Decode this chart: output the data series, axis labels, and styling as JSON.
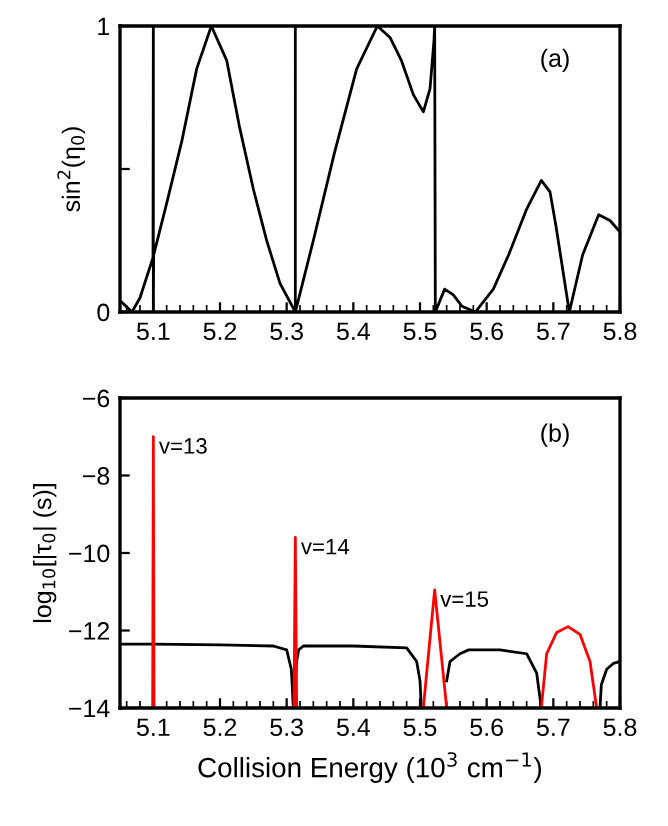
{
  "chart_data": [
    {
      "type": "line",
      "ylabel": "sin$^{2}$(η$_{0}$)",
      "annotations": [
        "(a)"
      ],
      "xlim": [
        5.05,
        5.8
      ],
      "ylim": [
        0,
        1
      ],
      "xticks": [
        5.1,
        5.2,
        5.3,
        5.4,
        5.5,
        5.6,
        5.7,
        5.8
      ],
      "yticks": [
        0,
        {
          "value": 0.5,
          "label": null
        },
        1
      ],
      "grid": false,
      "legend": false,
      "marker": "none",
      "line_style": "solid",
      "series": [
        {
          "color": "#000000",
          "x": [
            5.05,
            5.068,
            5.08,
            5.0995,
            5.1,
            5.1,
            5.1005,
            5.12,
            5.143,
            5.165,
            5.187,
            5.21,
            5.229,
            5.25,
            5.27,
            5.29,
            5.313,
            5.313,
            5.313,
            5.34,
            5.371,
            5.405,
            5.436,
            5.455,
            5.472,
            5.49,
            5.505,
            5.515,
            5.521,
            5.522,
            5.523,
            5.537,
            5.55,
            5.563,
            5.583,
            5.61,
            5.633,
            5.66,
            5.682,
            5.695,
            5.704,
            5.724,
            5.744,
            5.768,
            5.785,
            5.8
          ],
          "values": [
            0.04,
            0,
            0.05,
            0.19,
            1,
            0,
            0.2,
            0.38,
            0.6,
            0.85,
            1,
            0.88,
            0.65,
            0.43,
            0.25,
            0.1,
            0,
            1,
            0,
            0.25,
            0.55,
            0.85,
            1,
            0.96,
            0.88,
            0.76,
            0.7,
            0.78,
            0.95,
            1,
            0,
            0.08,
            0.06,
            0.02,
            0,
            0.08,
            0.2,
            0.36,
            0.46,
            0.42,
            0.3,
            0,
            0.2,
            0.34,
            0.32,
            0.28
          ]
        }
      ]
    },
    {
      "type": "line",
      "xlabel": "Collision Energy (10$^{3}$ cm$^{−1}$)",
      "ylabel": "log$_{10}$[|τ$_{0}$| (s)]",
      "annotations": [
        "(b)",
        {
          "text": "v=13",
          "x": 5.1,
          "y": -7
        },
        {
          "text": "v=14",
          "x": 5.313,
          "y": -9.6
        },
        {
          "text": "v=15",
          "x": 5.522,
          "y": -10.95
        }
      ],
      "xlim": [
        5.05,
        5.8
      ],
      "ylim": [
        -14,
        -6
      ],
      "xticks": [
        5.1,
        5.2,
        5.3,
        5.4,
        5.5,
        5.6,
        5.7,
        5.8
      ],
      "yticks": [
        {
          "value": -14,
          "label": "−14"
        },
        {
          "value": -12,
          "label": "−12"
        },
        {
          "value": -10,
          "label": "−10"
        },
        {
          "value": -8,
          "label": "−8"
        },
        {
          "value": -6,
          "label": "−6"
        }
      ],
      "grid": false,
      "legend": false,
      "marker": "none",
      "line_style": "solid",
      "series": [
        {
          "color": "#000000",
          "x": [
            5.05,
            5.1,
            5.2,
            5.28,
            5.3,
            5.307,
            5.31,
            5.315,
            5.318,
            5.325,
            5.4,
            5.48,
            5.495,
            5.5,
            5.502,
            null,
            5.54,
            5.545,
            5.56,
            5.573,
            5.62,
            5.66,
            5.675,
            5.682,
            null,
            5.77,
            5.772,
            5.78,
            5.79,
            5.8
          ],
          "values": [
            -12.35,
            -12.35,
            -12.37,
            -12.4,
            -12.5,
            -13,
            -14,
            -12.8,
            -12.5,
            -12.4,
            -12.4,
            -12.45,
            -12.8,
            -13.3,
            -14,
            null,
            -13.3,
            -12.8,
            -12.6,
            -12.5,
            -12.5,
            -12.6,
            -13.1,
            -14,
            null,
            -14,
            -13.4,
            -13,
            -12.85,
            -12.8
          ]
        },
        {
          "color": "#ff0000",
          "x": [
            5.099,
            5.1,
            5.101,
            null,
            5.311,
            5.313,
            5.315,
            null,
            5.505,
            5.522,
            5.54,
            null,
            5.682,
            5.69,
            5.705,
            5.722,
            5.74,
            5.755,
            5.765
          ],
          "values": [
            -14,
            -7,
            -14,
            null,
            -14,
            -9.6,
            -14,
            null,
            -14,
            -10.95,
            -14,
            null,
            -14,
            -12.6,
            -12.05,
            -11.9,
            -12.1,
            -12.8,
            -14
          ]
        }
      ]
    }
  ]
}
